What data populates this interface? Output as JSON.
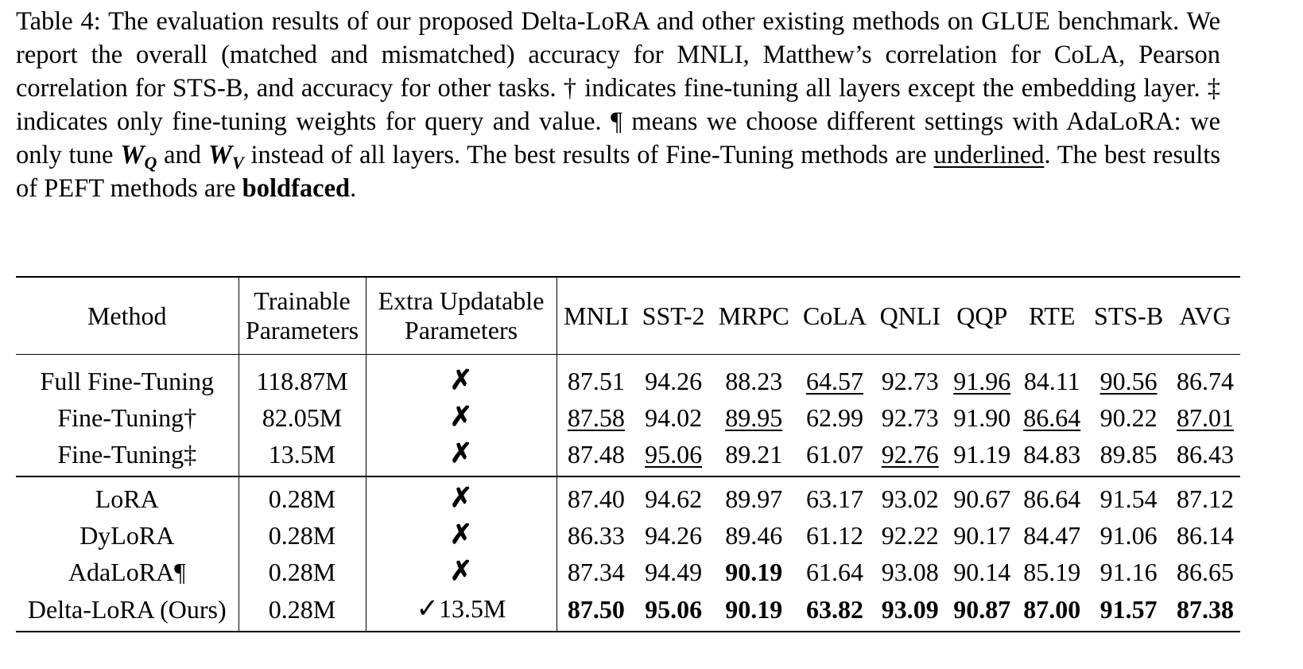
{
  "caption": {
    "p1": "Table 4: The evaluation results of our proposed Delta-LoRA and other existing methods on GLUE benchmark.  We report the overall (matched and mismatched) accuracy for MNLI, Matthew’s correlation for CoLA, Pearson correlation for STS-B, and accuracy for other tasks.  † indicates fine-tuning all layers except the embedding layer. ‡ indicates only fine-tuning weights for query and value. ¶ means we choose different settings with AdaLoRA: we only tune ",
    "w": "W",
    "q": "Q",
    "and": " and ",
    "v": "V",
    "p2": " instead of all layers. The best results of Fine-Tuning methods are ",
    "underlined": "underlined",
    "p3": ". The best results of PEFT methods are ",
    "boldfaced": "boldfaced",
    "p4": "."
  },
  "table": {
    "headers": {
      "method": "Method",
      "trainable_1": "Trainable",
      "trainable_2": "Parameters",
      "extra_1": "Extra Updatable",
      "extra_2": "Parameters",
      "tasks": [
        "MNLI",
        "SST-2",
        "MRPC",
        "CoLA",
        "QNLI",
        "QQP",
        "RTE",
        "STS-B",
        "AVG"
      ]
    },
    "symbols": {
      "cross": "✗",
      "check": "✓"
    },
    "fine_tuning_rows": [
      {
        "method": "Full Fine-Tuning",
        "trainable": "118.87M",
        "extra": "✗",
        "values": [
          "87.51",
          "94.26",
          "88.23",
          "64.57",
          "92.73",
          "91.96",
          "84.11",
          "90.56",
          "86.74"
        ]
      },
      {
        "method": "Fine-Tuning†",
        "trainable": "82.05M",
        "extra": "✗",
        "values": [
          "87.58",
          "94.02",
          "89.95",
          "62.99",
          "92.73",
          "91.90",
          "86.64",
          "90.22",
          "87.01"
        ]
      },
      {
        "method": "Fine-Tuning‡",
        "trainable": "13.5M",
        "extra": "✗",
        "values": [
          "87.48",
          "95.06",
          "89.21",
          "61.07",
          "92.76",
          "91.19",
          "84.83",
          "89.85",
          "86.43"
        ]
      }
    ],
    "peft_rows": [
      {
        "method": "LoRA",
        "trainable": "0.28M",
        "extra": "✗",
        "values": [
          "87.40",
          "94.62",
          "89.97",
          "63.17",
          "93.02",
          "90.67",
          "86.64",
          "91.54",
          "87.12"
        ]
      },
      {
        "method": "DyLoRA",
        "trainable": "0.28M",
        "extra": "✗",
        "values": [
          "86.33",
          "94.26",
          "89.46",
          "61.12",
          "92.22",
          "90.17",
          "84.47",
          "91.06",
          "86.14"
        ]
      },
      {
        "method": "AdaLoRA¶",
        "trainable": "0.28M",
        "extra": "✗",
        "values": [
          "87.34",
          "94.49",
          "90.19",
          "61.64",
          "93.08",
          "90.14",
          "85.19",
          "91.16",
          "86.65"
        ]
      },
      {
        "method": "Delta-LoRA (Ours)",
        "trainable": "0.28M",
        "extra_check": "✓",
        "extra": "13.5M",
        "values": [
          "87.50",
          "95.06",
          "90.19",
          "63.82",
          "93.09",
          "90.87",
          "87.00",
          "91.57",
          "87.38"
        ]
      }
    ]
  }
}
